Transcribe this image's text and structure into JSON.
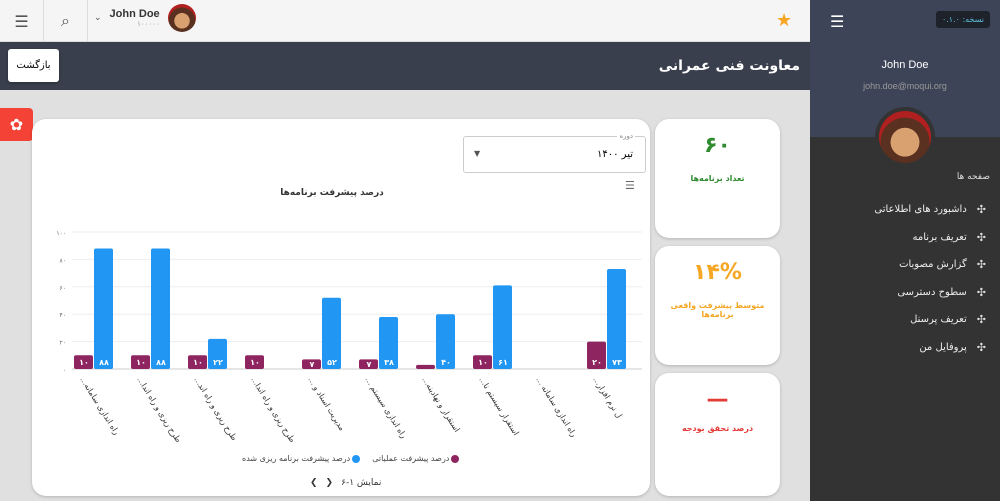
{
  "topbar": {
    "user_name": "John Doe",
    "user_id": "۱۰۰۰۰۰",
    "list_icon": "list-icon",
    "search_icon": "search-icon",
    "star_icon": "star-icon"
  },
  "header": {
    "title": "معاونت فنی عمرانی",
    "back_label": "بازگشت"
  },
  "sidebar": {
    "version": "نسخه: ۰.۱.۰",
    "name": "John Doe",
    "email": "john.doe@moqui.org",
    "section": "صفحه ها",
    "items": [
      {
        "label": "داشبورد های اطلاعاتی"
      },
      {
        "label": "تعریف برنامه"
      },
      {
        "label": "گزارش مصوبات"
      },
      {
        "label": "سطوح دسترسی"
      },
      {
        "label": "تعریف پرسنل"
      },
      {
        "label": "پروفایل من"
      }
    ]
  },
  "kpis": [
    {
      "value": "۶۰",
      "label": "تعداد برنامه‌ها",
      "color": "#2e8b2e"
    },
    {
      "value": "۱۴%",
      "label": "متوسط پیشرفت واقعی برنامه‌ها",
      "color": "#f5a623"
    },
    {
      "value": "—",
      "label": "درصد تحقق بودجه",
      "color": "#e53935"
    }
  ],
  "filter": {
    "label": "دوره",
    "value": "تیر ۱۴۰۰"
  },
  "pager": {
    "text": "نمایش ۱-۶"
  },
  "chart_data": {
    "type": "bar",
    "title": "درصد پیشرفت برنامه‌ها",
    "ylim": [
      0,
      100
    ],
    "yticks": [
      "۰",
      "۲۰",
      "۴۰",
      "۶۰",
      "۸۰",
      "۱۰۰"
    ],
    "grid": true,
    "legend": "bottom",
    "categories": [
      "راه اندازی سامانه...",
      "طرح ریزی و راه اندا...",
      "طرح ریزی و راه اند...",
      "طرح ریزی و راه اندا...",
      "مدیریت اسناد و ...",
      "راه اندازی سیستم ...",
      "استقرار و نهادینه...",
      "استقرار سیستم نا...",
      "راه اندازی سامانه ...",
      "ل نرم افزار..."
    ],
    "series": [
      {
        "name": "درصد پیشرفت عملیاتی",
        "color": "#8e2460",
        "values": [
          10,
          10,
          10,
          10,
          7,
          7,
          3,
          10,
          0,
          20
        ],
        "labels": [
          "۱۰",
          "۱۰",
          "۱۰",
          "۱۰",
          "۷",
          "۷",
          "",
          "۱۰",
          "",
          "۲۰"
        ]
      },
      {
        "name": "درصد پیشرفت برنامه ریزی شده",
        "color": "#2196f3",
        "values": [
          88,
          88,
          22,
          0,
          52,
          38,
          40,
          61,
          0,
          73
        ],
        "labels": [
          "۸۸",
          "۸۸",
          "۲۲",
          "",
          "۵۲",
          "۳۸",
          "۴۰",
          "۶۱",
          "",
          "۷۳"
        ]
      }
    ]
  }
}
